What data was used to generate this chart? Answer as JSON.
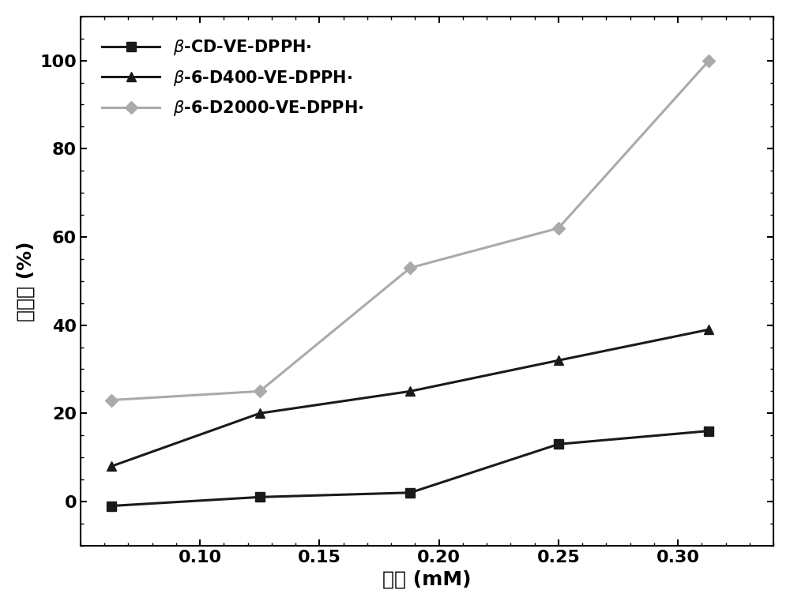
{
  "x": [
    0.063,
    0.125,
    0.188,
    0.25,
    0.313
  ],
  "series": [
    {
      "label_latex": "$\\beta$-CD-VE-DPPH·",
      "y": [
        -1,
        1,
        2,
        13,
        16
      ],
      "color": "#1a1a1a",
      "marker": "s",
      "markersize": 8,
      "linewidth": 2.2
    },
    {
      "label_latex": "$\\beta$-6-D400-VE-DPPH·",
      "y": [
        8,
        20,
        25,
        32,
        39
      ],
      "color": "#1a1a1a",
      "marker": "^",
      "markersize": 9,
      "linewidth": 2.2
    },
    {
      "label_latex": "$\\beta$-6-D2000-VE-DPPH·",
      "y": [
        23,
        25,
        53,
        62,
        100
      ],
      "color": "#aaaaaa",
      "marker": "D",
      "markersize": 8,
      "linewidth": 2.2
    }
  ],
  "xlabel_cn": "浓度",
  "xlabel_suffix": " (mM)",
  "ylabel_cn": "清除率 (%)",
  "xlim": [
    0.05,
    0.34
  ],
  "ylim": [
    -10,
    110
  ],
  "yticks": [
    0,
    20,
    40,
    60,
    80,
    100
  ],
  "xticks": [
    0.1,
    0.15,
    0.2,
    0.25,
    0.3
  ],
  "background_color": "#ffffff",
  "legend_fontsize": 15,
  "axis_fontsize": 18,
  "tick_fontsize": 16
}
